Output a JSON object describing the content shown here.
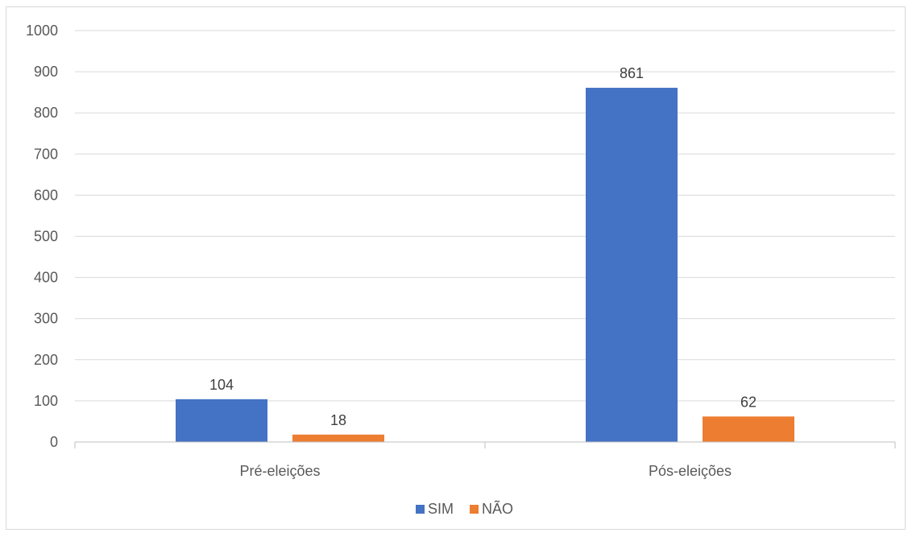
{
  "chart_data": {
    "type": "bar",
    "title": "",
    "xlabel": "",
    "ylabel": "",
    "categories": [
      "Pré-eleições",
      "Pós-eleições"
    ],
    "series": [
      {
        "name": "SIM",
        "color": "#4472c4",
        "values": [
          104,
          861
        ]
      },
      {
        "name": "NÃO",
        "color": "#ed7d31",
        "values": [
          18,
          62
        ]
      }
    ],
    "ylim": [
      0,
      1000
    ],
    "yticks": [
      0,
      100,
      200,
      300,
      400,
      500,
      600,
      700,
      800,
      900,
      1000
    ],
    "grid": true,
    "legend_position": "bottom",
    "data_labels": true
  }
}
